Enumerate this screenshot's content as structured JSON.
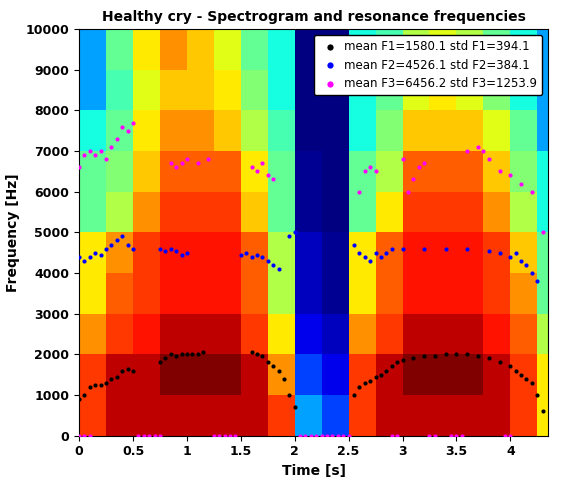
{
  "chart_data": {
    "type": "spectrogram",
    "title": "Healthy cry - Spectrogram and resonance frequencies",
    "x_label": "Time [s]",
    "y_label": "Frequency [Hz]",
    "xlim": [
      0,
      4.35
    ],
    "ylim": [
      0,
      10000
    ],
    "xticks": [
      0,
      0.5,
      1,
      1.5,
      2,
      2.5,
      3,
      3.5,
      4
    ],
    "yticks": [
      0,
      1000,
      2000,
      3000,
      4000,
      5000,
      6000,
      7000,
      8000,
      9000,
      10000
    ],
    "legend": "upper right",
    "heatmap": {
      "x_edges": [
        0,
        0.25,
        0.5,
        0.75,
        1,
        1.25,
        1.5,
        1.75,
        2,
        2.25,
        2.5,
        2.75,
        3,
        3.25,
        3.5,
        3.75,
        4,
        4.25,
        4.35
      ],
      "y_edges": [
        0,
        1000,
        2000,
        3000,
        4000,
        5000,
        6000,
        7000,
        8000,
        9000,
        10000
      ],
      "cells": [
        [
          0.8,
          0.85,
          0.85,
          0.85,
          0.85,
          0.85,
          0.85,
          0.8,
          0.5,
          0.45,
          0.8,
          0.85,
          0.85,
          0.85,
          0.85,
          0.85,
          0.8,
          0.7
        ],
        [
          0.8,
          0.85,
          0.85,
          0.88,
          0.88,
          0.88,
          0.85,
          0.75,
          0.45,
          0.4,
          0.8,
          0.85,
          0.88,
          0.88,
          0.88,
          0.85,
          0.8,
          0.7
        ],
        [
          0.75,
          0.8,
          0.82,
          0.85,
          0.85,
          0.85,
          0.8,
          0.7,
          0.4,
          0.38,
          0.75,
          0.8,
          0.85,
          0.85,
          0.85,
          0.82,
          0.78,
          0.65
        ],
        [
          0.7,
          0.78,
          0.8,
          0.82,
          0.82,
          0.82,
          0.78,
          0.65,
          0.38,
          0.36,
          0.7,
          0.78,
          0.82,
          0.82,
          0.82,
          0.8,
          0.75,
          0.6
        ],
        [
          0.7,
          0.75,
          0.8,
          0.82,
          0.82,
          0.82,
          0.78,
          0.65,
          0.38,
          0.36,
          0.7,
          0.78,
          0.82,
          0.82,
          0.82,
          0.8,
          0.72,
          0.6
        ],
        [
          0.6,
          0.65,
          0.75,
          0.8,
          0.8,
          0.8,
          0.72,
          0.6,
          0.36,
          0.35,
          0.6,
          0.7,
          0.8,
          0.8,
          0.8,
          0.75,
          0.65,
          0.55
        ],
        [
          0.6,
          0.62,
          0.72,
          0.78,
          0.78,
          0.78,
          0.7,
          0.6,
          0.36,
          0.35,
          0.6,
          0.65,
          0.78,
          0.78,
          0.78,
          0.72,
          0.62,
          0.55
        ],
        [
          0.55,
          0.6,
          0.7,
          0.75,
          0.75,
          0.72,
          0.65,
          0.58,
          0.35,
          0.35,
          0.55,
          0.62,
          0.72,
          0.72,
          0.72,
          0.68,
          0.6,
          0.5
        ],
        [
          0.5,
          0.58,
          0.68,
          0.72,
          0.72,
          0.7,
          0.62,
          0.55,
          0.35,
          0.35,
          0.55,
          0.6,
          0.68,
          0.7,
          0.68,
          0.62,
          0.55,
          0.5
        ],
        [
          0.5,
          0.6,
          0.7,
          0.75,
          0.72,
          0.68,
          0.6,
          0.55,
          0.35,
          0.35,
          0.55,
          0.58,
          0.65,
          0.68,
          0.65,
          0.6,
          0.55,
          0.5
        ]
      ]
    },
    "series": [
      {
        "name": "mean F1=1580.1 std F1=394.1",
        "color": "#000000",
        "marker": "dot",
        "x": [
          0.0,
          0.05,
          0.1,
          0.15,
          0.2,
          0.25,
          0.3,
          0.35,
          0.4,
          0.45,
          0.5,
          0.75,
          0.8,
          0.85,
          0.9,
          0.95,
          1.0,
          1.05,
          1.1,
          1.15,
          1.6,
          1.65,
          1.7,
          1.75,
          1.8,
          1.85,
          1.9,
          1.95,
          2.0,
          2.55,
          2.6,
          2.65,
          2.7,
          2.75,
          2.8,
          2.85,
          2.9,
          2.95,
          3.0,
          3.1,
          3.2,
          3.3,
          3.4,
          3.5,
          3.6,
          3.7,
          3.8,
          3.9,
          4.0,
          4.05,
          4.1,
          4.15,
          4.2,
          4.25,
          4.3
        ],
        "values": [
          900,
          1000,
          1200,
          1250,
          1250,
          1300,
          1400,
          1450,
          1600,
          1650,
          1600,
          1800,
          1900,
          2000,
          1950,
          2000,
          2000,
          2000,
          2000,
          2050,
          2050,
          2000,
          1950,
          1800,
          1700,
          1600,
          1400,
          1000,
          700,
          1000,
          1200,
          1300,
          1350,
          1450,
          1500,
          1600,
          1700,
          1800,
          1850,
          1900,
          1950,
          1950,
          2000,
          2000,
          2000,
          1950,
          1900,
          1800,
          1700,
          1600,
          1500,
          1400,
          1300,
          1000,
          600
        ]
      },
      {
        "name": "mean F2=4526.1 std F2=384.1",
        "color": "#0000ff",
        "marker": "dot",
        "x": [
          0.0,
          0.05,
          0.1,
          0.15,
          0.2,
          0.25,
          0.3,
          0.35,
          0.4,
          0.45,
          0.5,
          0.75,
          0.8,
          0.85,
          0.9,
          0.95,
          1.0,
          1.5,
          1.55,
          1.6,
          1.65,
          1.7,
          1.75,
          1.8,
          1.85,
          1.95,
          2.0,
          2.55,
          2.6,
          2.65,
          2.7,
          2.75,
          2.8,
          2.85,
          2.9,
          3.0,
          3.2,
          3.4,
          3.6,
          3.8,
          3.9,
          4.0,
          4.05,
          4.1,
          4.15,
          4.2,
          4.25
        ],
        "values": [
          4400,
          4300,
          4400,
          4500,
          4450,
          4600,
          4700,
          4800,
          4900,
          4700,
          4600,
          4600,
          4550,
          4600,
          4550,
          4450,
          4500,
          4450,
          4500,
          4400,
          4450,
          4400,
          4300,
          4200,
          4100,
          4900,
          5000,
          4700,
          4500,
          4400,
          4300,
          4500,
          4400,
          4500,
          4600,
          4600,
          4600,
          4600,
          4600,
          4550,
          4500,
          4400,
          4500,
          4300,
          4200,
          4000,
          3800
        ]
      },
      {
        "name": "mean F3=6456.2 std F3=1253.9",
        "color": "#ff00ff",
        "marker": "dot",
        "x": [
          0.0,
          0.05,
          0.1,
          0.15,
          0.2,
          0.25,
          0.3,
          0.35,
          0.4,
          0.45,
          0.5,
          0.85,
          0.9,
          0.95,
          1.0,
          1.1,
          1.2,
          1.6,
          1.65,
          1.7,
          1.75,
          1.8,
          2.6,
          2.65,
          2.7,
          2.75,
          3.0,
          3.05,
          3.1,
          3.15,
          3.2,
          3.6,
          3.7,
          3.75,
          3.8,
          3.9,
          4.0,
          4.1,
          4.2,
          4.3,
          0.0,
          0.05,
          0.1,
          0.55,
          0.6,
          0.65,
          0.7,
          0.75,
          1.25,
          1.3,
          1.35,
          1.4,
          1.45,
          2.05,
          2.1,
          2.15,
          2.2,
          2.25,
          2.3,
          2.35,
          2.4,
          2.45,
          2.5,
          2.9,
          2.95,
          3.25,
          3.3,
          3.45,
          3.5,
          3.55,
          3.95,
          4.0
        ],
        "values": [
          6600,
          6900,
          7000,
          6900,
          7000,
          6800,
          7100,
          7300,
          7600,
          7500,
          7700,
          6700,
          6600,
          6700,
          6800,
          6700,
          6800,
          6600,
          6500,
          6700,
          6400,
          6300,
          6000,
          6500,
          6600,
          6500,
          6800,
          6000,
          6300,
          6600,
          6700,
          7000,
          7100,
          7000,
          6800,
          6500,
          6400,
          6200,
          6000,
          5000,
          0,
          0,
          0,
          0,
          0,
          0,
          0,
          0,
          0,
          0,
          0,
          0,
          0,
          0,
          0,
          0,
          0,
          0,
          0,
          0,
          0,
          0,
          0,
          0,
          0,
          0,
          0,
          0,
          0,
          0,
          0,
          0
        ]
      }
    ]
  }
}
